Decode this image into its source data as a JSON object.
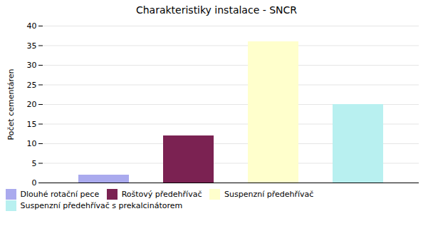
{
  "chart_data": {
    "type": "bar",
    "title": "Charakteristiky  instalace  -  SNCR",
    "ylabel": "Počet cementáren",
    "categories": [
      "Dlouhé rotační pece",
      "Roštový předehřívač",
      "Suspenzní předehřívač",
      "Suspenzní předehřívač s prekalcinátorem"
    ],
    "values": [
      2,
      12,
      36,
      20
    ],
    "colors": [
      "#aaaaee",
      "#7b2252",
      "#ffffcc",
      "#b8f0f0"
    ],
    "ylim": [
      0,
      40
    ],
    "yticks": [
      0,
      5,
      10,
      15,
      20,
      25,
      30,
      35,
      40
    ],
    "grid": true,
    "legend": "bottom",
    "tick_labels": "y"
  }
}
